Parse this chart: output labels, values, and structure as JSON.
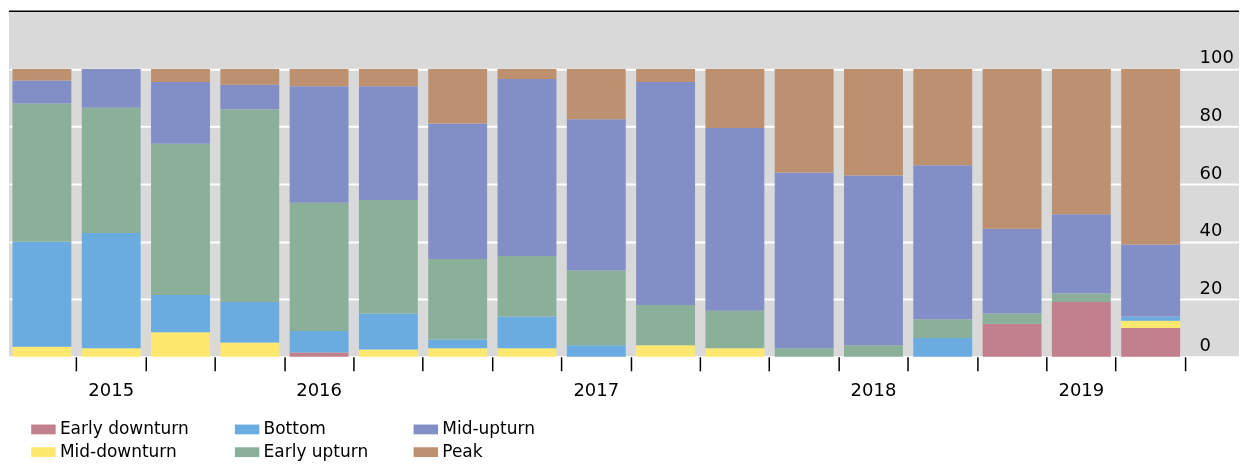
{
  "chart_data": {
    "type": "bar",
    "stacked": true,
    "categories": [
      null,
      "2015",
      null,
      null,
      "2016",
      null,
      null,
      null,
      "2017",
      null,
      null,
      null,
      "2018",
      null,
      null,
      "2019",
      null
    ],
    "series": [
      {
        "name": "Early downturn",
        "color": "#c27f8e",
        "values": [
          0,
          0,
          0,
          0,
          1.5,
          0,
          0,
          0,
          0,
          0,
          0,
          0,
          0,
          0,
          11.5,
          19,
          10
        ]
      },
      {
        "name": "Mid-downturn",
        "color": "#ffe870",
        "values": [
          3.5,
          3,
          8.5,
          5,
          0,
          2.5,
          3,
          3,
          0,
          4,
          3,
          0,
          0,
          0,
          0,
          0,
          2.5
        ]
      },
      {
        "name": "Bottom",
        "color": "#6aace0",
        "values": [
          36.5,
          40,
          13,
          14,
          7.5,
          12.5,
          3,
          11,
          4,
          0,
          0,
          0,
          0,
          6.5,
          0,
          0,
          1.5
        ]
      },
      {
        "name": "Early upturn",
        "color": "#8bb09a",
        "values": [
          48,
          43.5,
          52.5,
          67,
          44.5,
          39.5,
          28,
          21,
          26,
          14,
          13,
          3,
          4,
          6.5,
          3.5,
          3,
          0
        ]
      },
      {
        "name": "Mid-upturn",
        "color": "#818fc6",
        "values": [
          8,
          13.5,
          21.5,
          8.5,
          40.5,
          39.5,
          47,
          61.5,
          52.5,
          77.5,
          63.5,
          61,
          59,
          53.5,
          29.5,
          27.5,
          25
        ]
      },
      {
        "name": "Peak",
        "color": "#bd9170",
        "values": [
          4,
          0,
          4.5,
          5.5,
          6,
          6,
          19,
          3.5,
          17.5,
          4.5,
          20.5,
          36,
          37,
          33.5,
          55.5,
          50.5,
          61
        ]
      }
    ],
    "ylim": [
      0,
      120
    ],
    "yticks": [
      0,
      20,
      40,
      60,
      80,
      100
    ],
    "grid": "y",
    "legend": "bottom"
  }
}
